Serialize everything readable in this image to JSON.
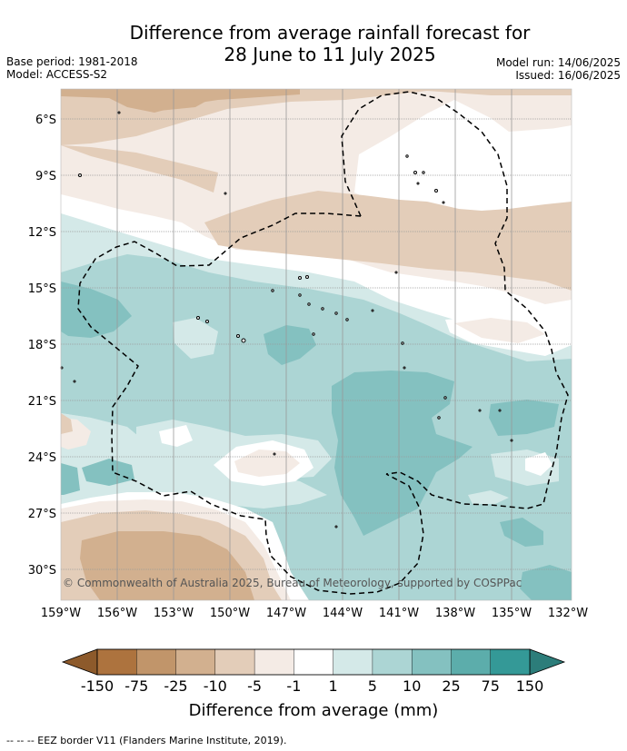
{
  "title": {
    "line1": "Difference from average rainfall forecast for",
    "line2": "28 June to 11 July 2025"
  },
  "meta": {
    "base_period": "Base period: 1981-2018",
    "model": "Model: ACCESS-S2",
    "model_run": "Model run: 14/06/2025",
    "issued": "Issued: 16/06/2025"
  },
  "map": {
    "latitude_labels": [
      "6°S",
      "9°S",
      "12°S",
      "15°S",
      "18°S",
      "21°S",
      "24°S",
      "27°S",
      "30°S"
    ],
    "longitude_labels": [
      "159°W",
      "156°W",
      "153°W",
      "150°W",
      "147°W",
      "144°W",
      "141°W",
      "138°W",
      "135°W",
      "132°W"
    ],
    "copyright": "© Commonwealth of Australia 2025, Bureau of Meteorology, supported by COSPPac",
    "gridlines": true
  },
  "colorbar": {
    "title": "Difference from average (mm)",
    "labels": [
      "-150",
      "-75",
      "-25",
      "-10",
      "-5",
      "-1",
      "1",
      "5",
      "10",
      "25",
      "75",
      "150"
    ],
    "colors": [
      "#ad733e",
      "#c1956a",
      "#d2b08f",
      "#e3cdb9",
      "#f4ebe5",
      "#ffffff",
      "#d4e9e8",
      "#acd5d4",
      "#84c1c0",
      "#5cadab",
      "#349997"
    ],
    "end_low": "#8d5a2b",
    "end_high": "#2c7d7a"
  },
  "footer": "-- -- -- EEZ border V11 (Flanders Marine Institute, 2019)."
}
